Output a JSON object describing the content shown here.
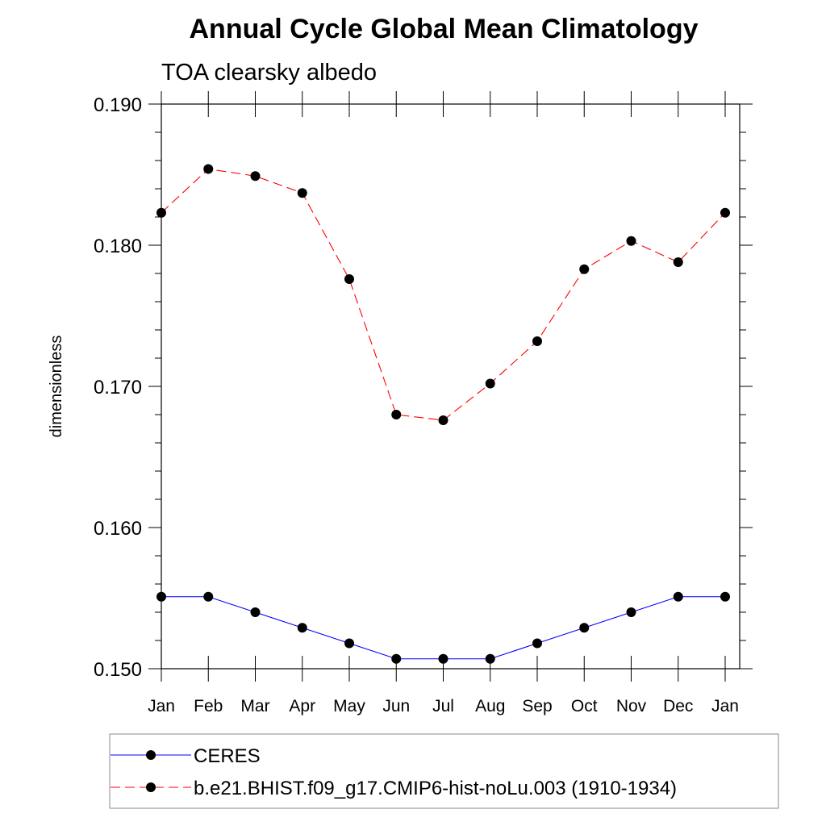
{
  "chart_data": {
    "type": "line",
    "title": "Annual Cycle Global Mean Climatology",
    "subtitle": "TOA clearsky albedo",
    "xlabel": "",
    "ylabel": "dimensionless",
    "categories": [
      "Jan",
      "Feb",
      "Mar",
      "Apr",
      "May",
      "Jun",
      "Jul",
      "Aug",
      "Sep",
      "Oct",
      "Nov",
      "Dec",
      "Jan"
    ],
    "ylim": [
      0.15,
      0.19
    ],
    "yticks": [
      0.15,
      0.16,
      0.17,
      0.18,
      0.19
    ],
    "ytick_labels": [
      "0.150",
      "0.160",
      "0.170",
      "0.180",
      "0.190"
    ],
    "grid": false,
    "legend_position": "bottom",
    "series": [
      {
        "name": "CERES",
        "color": "#0000ff",
        "line_style": "solid",
        "marker": "filled-circle",
        "values": [
          0.1551,
          0.1551,
          0.154,
          0.1529,
          0.1518,
          0.1507,
          0.1507,
          0.1507,
          0.1518,
          0.1529,
          0.154,
          0.1551,
          0.1551
        ]
      },
      {
        "name": "b.e21.BHIST.f09_g17.CMIP6-hist-noLu.003 (1910-1934)",
        "color": "#ff0000",
        "line_style": "dashed",
        "marker": "filled-circle",
        "values": [
          0.1823,
          0.1854,
          0.1849,
          0.1837,
          0.1776,
          0.168,
          0.1676,
          0.1702,
          0.1732,
          0.1783,
          0.1803,
          0.1788,
          0.1823
        ]
      }
    ]
  }
}
